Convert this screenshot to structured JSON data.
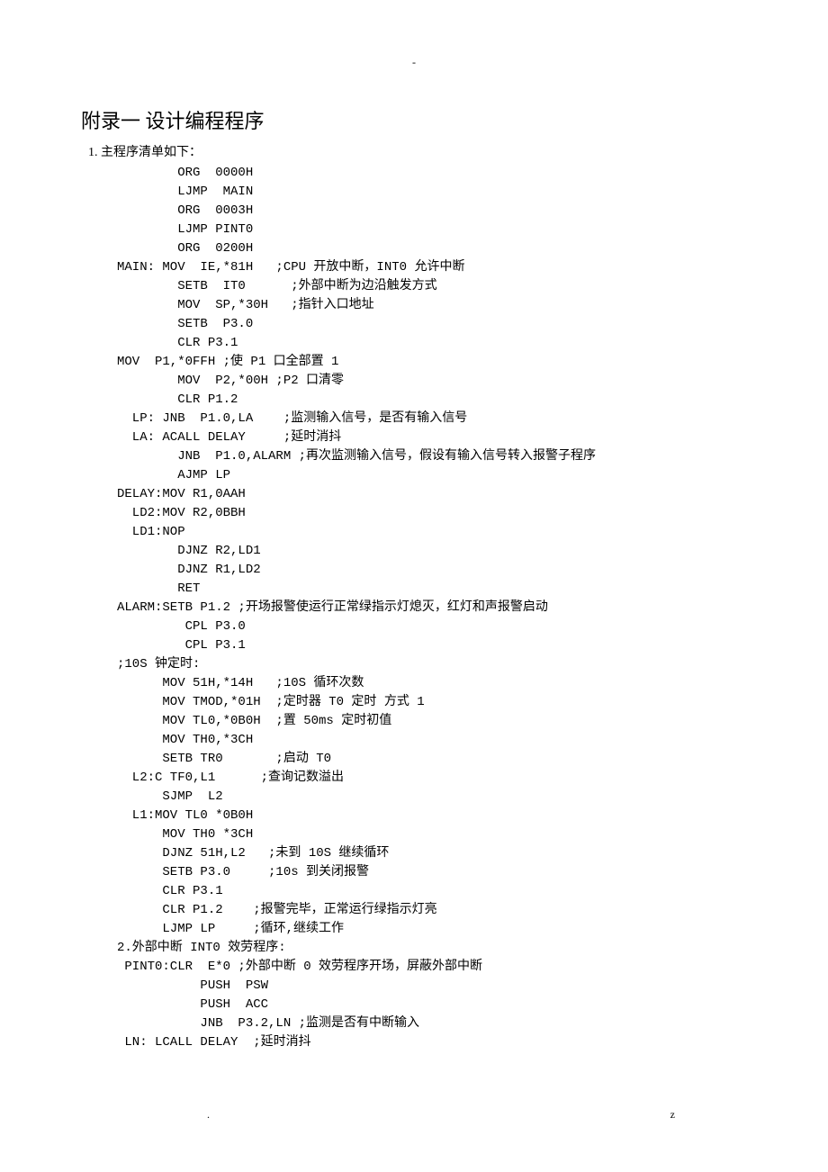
{
  "header_dash": "-",
  "title": "附录一  设计编程程序",
  "subtitle": "1. 主程序清单如下：",
  "lines": [
    "        ORG  0000H",
    "        LJMP  MAIN",
    "        ORG  0003H",
    "        LJMP PINT0",
    "        ORG  0200H",
    "MAIN: MOV  IE,*81H   ;CPU 开放中断，INT0 允许中断",
    "        SETB  IT0      ;外部中断为边沿触发方式",
    "        MOV  SP,*30H   ;指针入口地址",
    "        SETB  P3.0",
    "        CLR P3.1",
    "MOV  P1,*0FFH ;使 P1 口全部置 1",
    "        MOV  P2,*00H ;P2 口清零",
    "        CLR P1.2",
    "  LP: JNB  P1.0,LA    ;监测输入信号，是否有输入信号",
    "  LA: ACALL DELAY     ;延时消抖",
    "        JNB  P1.0,ALARM ;再次监测输入信号，假设有输入信号转入报警子程序",
    "        AJMP LP",
    "DELAY:MOV R1,0AAH",
    "  LD2:MOV R2,0BBH",
    "  LD1:NOP",
    "        DJNZ R2,LD1",
    "        DJNZ R1,LD2",
    "        RET",
    "ALARM:SETB P1.2 ;开场报警使运行正常绿指示灯熄灭，红灯和声报警启动",
    "         CPL P3.0",
    "         CPL P3.1",
    ";10S 钟定时:",
    "      MOV 51H,*14H   ;10S 循环次数",
    "      MOV TMOD,*01H  ;定时器 T0 定时 方式 1",
    "      MOV TL0,*0B0H  ;置 50ms 定时初值",
    "      MOV TH0,*3CH",
    "      SETB TR0       ;启动 T0",
    "  L2:C TF0,L1      ;查询记数溢出",
    "      SJMP  L2",
    "  L1:MOV TL0 *0B0H",
    "      MOV TH0 *3CH",
    "      DJNZ 51H,L2   ;未到 10S 继续循环",
    "      SETB P3.0     ;10s 到关闭报警",
    "      CLR P3.1",
    "      CLR P1.2    ;报警完毕，正常运行绿指示灯亮",
    "      LJMP LP     ;循环,继续工作",
    "2.外部中断 INT0 效劳程序:",
    " PINT0:CLR  E*0 ;外部中断 0 效劳程序开场，屏蔽外部中断",
    "           PUSH  PSW",
    "           PUSH  ACC",
    "           JNB  P3.2,LN ;监测是否有中断输入",
    " LN: LCALL DELAY  ;延时消抖"
  ],
  "footer_left": ".",
  "footer_right": "z"
}
